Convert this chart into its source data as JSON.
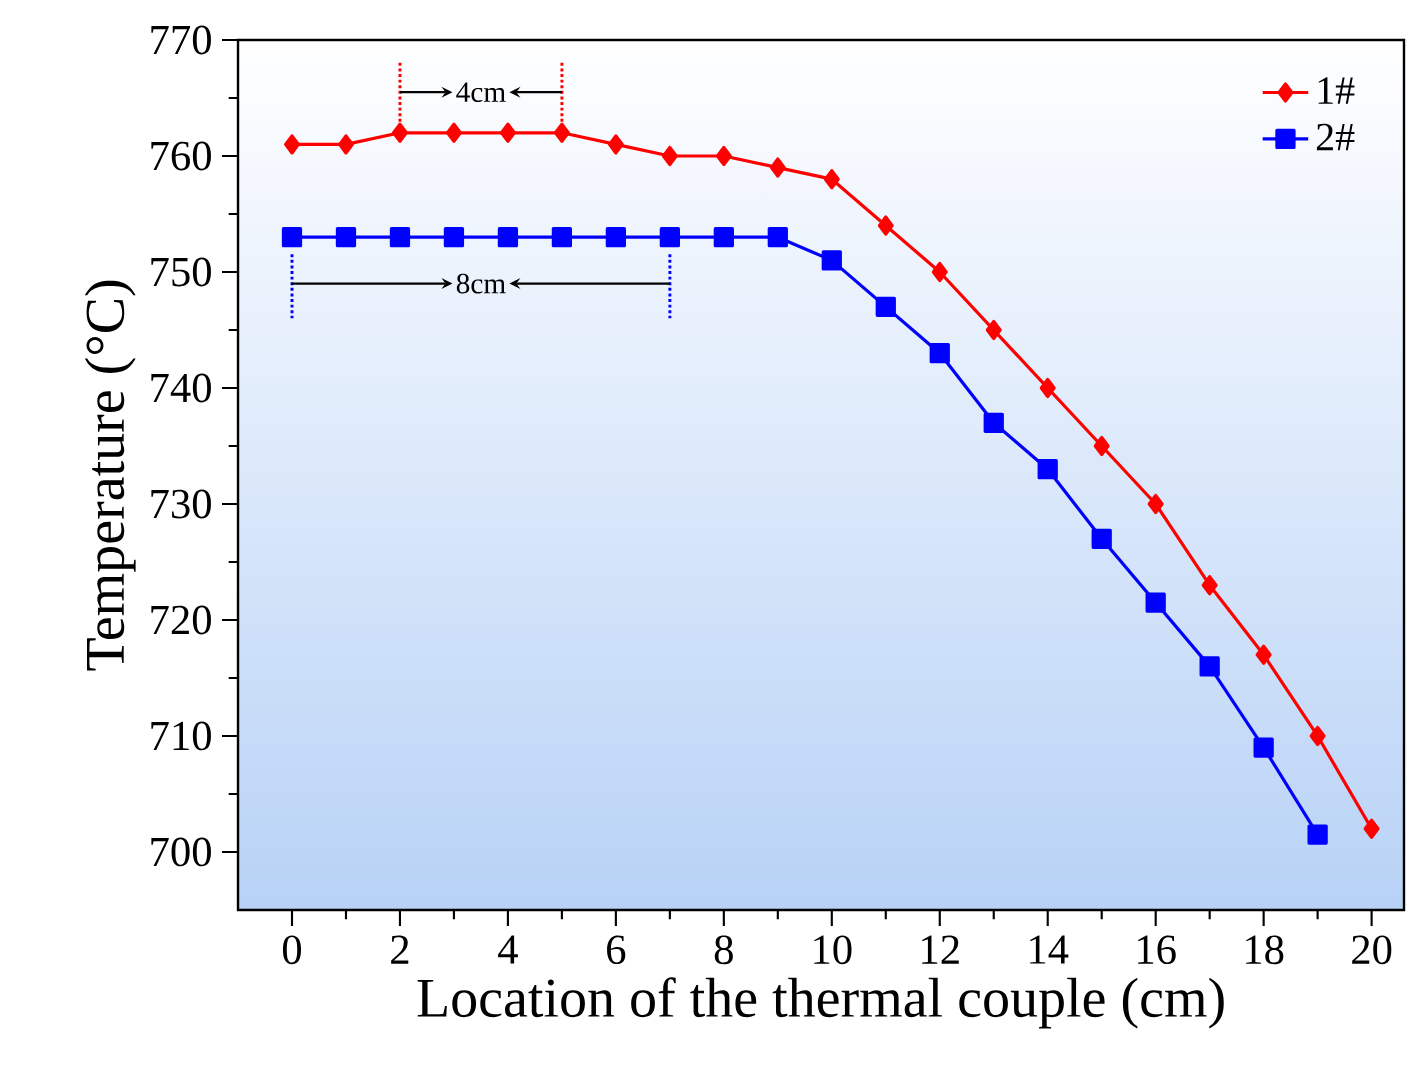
{
  "chart_data": {
    "type": "line",
    "xlabel": "Location of the thermal couple (cm)",
    "ylabel": "Temperature (°C)",
    "xlim": [
      -1,
      20.6
    ],
    "ylim": [
      695,
      770
    ],
    "xticks": [
      0,
      2,
      4,
      6,
      8,
      10,
      12,
      14,
      16,
      18,
      20
    ],
    "yticks": [
      700,
      710,
      720,
      730,
      740,
      750,
      760,
      770
    ],
    "legend": "top right",
    "grid": false,
    "series": [
      {
        "name": "1#",
        "color": "#ff0000",
        "marker": "diamond",
        "x": [
          0,
          1,
          2,
          3,
          4,
          5,
          6,
          7,
          8,
          9,
          10,
          11,
          12,
          13,
          14,
          15,
          16,
          17,
          18,
          19,
          20
        ],
        "values": [
          761,
          761,
          762,
          762,
          762,
          762,
          761,
          760,
          760,
          759,
          758,
          754,
          750,
          745,
          740,
          735,
          730,
          723,
          717,
          710,
          702
        ]
      },
      {
        "name": "2#",
        "color": "#0000ff",
        "marker": "square",
        "x": [
          0,
          1,
          2,
          3,
          4,
          5,
          6,
          7,
          8,
          9,
          10,
          11,
          12,
          13,
          14,
          15,
          16,
          17,
          18,
          19
        ],
        "values": [
          753,
          753,
          753,
          753,
          753,
          753,
          753,
          753,
          753,
          753,
          751,
          747,
          743,
          737,
          733,
          727,
          721.5,
          716,
          709,
          701.5
        ]
      }
    ],
    "annotations": [
      "4cm",
      "8cm"
    ]
  }
}
